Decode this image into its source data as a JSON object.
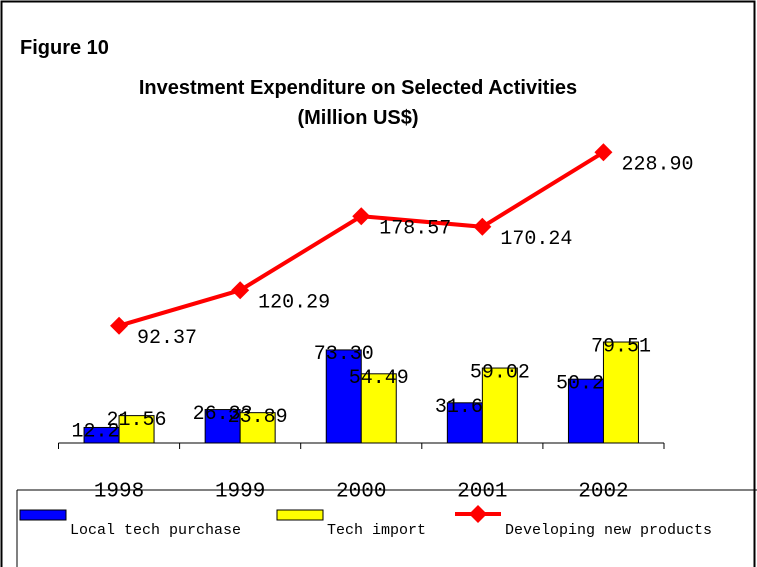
{
  "chart_data": {
    "type": "bar",
    "figure_label": "Figure 10",
    "title": "Investment Expenditure on Selected Activities",
    "subtitle": "(Million US$)",
    "categories": [
      "1998",
      "1999",
      "2000",
      "2001",
      "2002"
    ],
    "ylim": [
      0,
      250
    ],
    "legend": "bottom",
    "series": [
      {
        "name": "Local tech purchase",
        "type": "bar",
        "color": "#0000ff",
        "values": [
          12.24,
          26.33,
          73.3,
          31.66,
          50.26
        ],
        "value_labels": [
          "12.24",
          "26.33",
          "73.30",
          "31.66",
          "50.26"
        ]
      },
      {
        "name": "Tech import",
        "type": "bar",
        "color": "#ffff00",
        "values": [
          21.56,
          23.89,
          54.49,
          59.02,
          79.51
        ],
        "value_labels": [
          "21.56",
          "23.89",
          "54.49",
          "59.02",
          "79.51"
        ]
      },
      {
        "name": "Developing new products",
        "type": "line",
        "color": "#ff0000",
        "values": [
          92.37,
          120.29,
          178.57,
          170.24,
          228.9
        ],
        "value_labels": [
          "92.37",
          "120.29",
          "178.57",
          "170.24",
          "228.90"
        ]
      }
    ]
  }
}
